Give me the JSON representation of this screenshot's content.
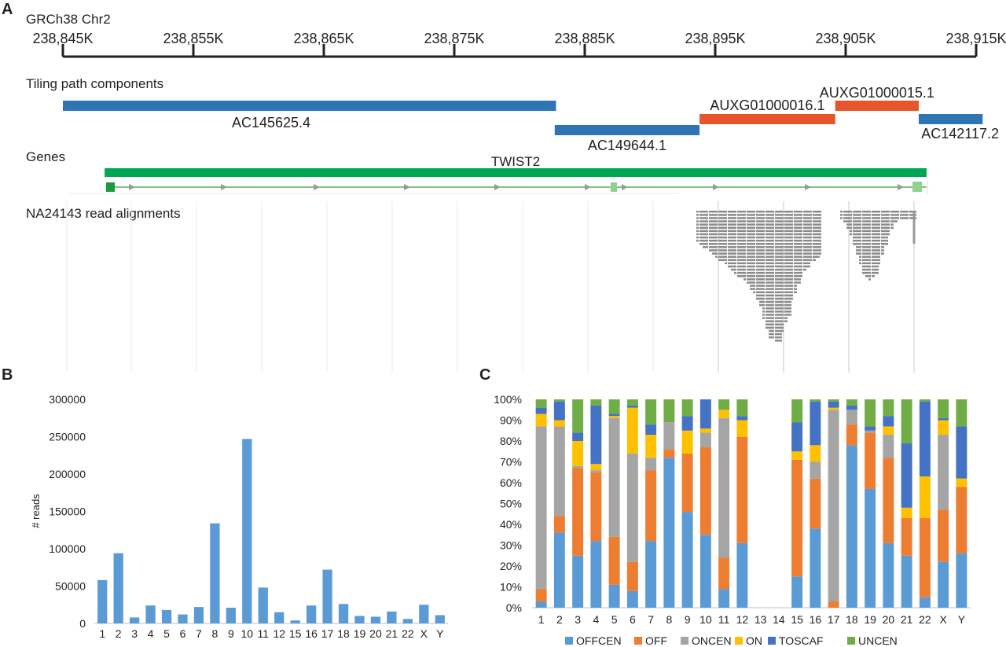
{
  "panel_labels": {
    "a": "A",
    "b": "B",
    "c": "C"
  },
  "panel_a": {
    "assembly_label": "GRCh38 Chr2",
    "ruler_ticks": [
      "238,845K",
      "238,855K",
      "238,865K",
      "238,875K",
      "238,885K",
      "238,895K",
      "238,905K",
      "238,915K"
    ],
    "ruler_range_kb": [
      238845,
      238915
    ],
    "tiling_title": "Tiling path components",
    "components": [
      {
        "name": "AC145625.4",
        "start_kb": 238845.0,
        "end_kb": 238882.8,
        "color": "#2f75b5"
      },
      {
        "name": "AC149644.1",
        "start_kb": 238882.7,
        "end_kb": 238893.8,
        "color": "#2f75b5"
      },
      {
        "name": "AUXG01000016.1",
        "start_kb": 238893.8,
        "end_kb": 238904.2,
        "color": "#e8542b"
      },
      {
        "name": "AUXG01000015.1",
        "start_kb": 238904.2,
        "end_kb": 238910.6,
        "color": "#e8542b"
      },
      {
        "name": "AC142117.2",
        "start_kb": 238910.6,
        "end_kb": 238915.5,
        "color": "#2f75b5"
      }
    ],
    "genes_title": "Genes",
    "gene": {
      "name": "TWIST2",
      "start_kb": 238848.2,
      "end_kb": 238911.2,
      "color": "#00a651"
    },
    "alignments_title": "NA24143 read alignments"
  },
  "chart_data": [
    {
      "type": "bar",
      "title": "",
      "xlabel": "",
      "ylabel": "# reads",
      "ylim": [
        0,
        300000
      ],
      "yticks": [
        "0",
        "50000",
        "100000",
        "150000",
        "200000",
        "250000",
        "300000"
      ],
      "categories": [
        "1",
        "2",
        "3",
        "4",
        "5",
        "6",
        "7",
        "8",
        "9",
        "10",
        "11",
        "12",
        "15",
        "16",
        "17",
        "18",
        "19",
        "20",
        "21",
        "22",
        "X",
        "Y"
      ],
      "values": [
        58000,
        94000,
        8000,
        24000,
        18000,
        12000,
        22000,
        134000,
        21000,
        247000,
        48000,
        15000,
        4000,
        24000,
        72000,
        26000,
        10000,
        9000,
        16000,
        6000,
        25000,
        11000
      ],
      "color": "#5b9bd5"
    },
    {
      "type": "bar",
      "stacked": true,
      "title": "",
      "ylim": [
        0,
        100
      ],
      "yticks": [
        "0%",
        "10%",
        "20%",
        "30%",
        "40%",
        "50%",
        "60%",
        "70%",
        "80%",
        "90%",
        "100%"
      ],
      "categories": [
        "1",
        "2",
        "3",
        "4",
        "5",
        "6",
        "7",
        "8",
        "9",
        "10",
        "11",
        "12",
        "13",
        "14",
        "15",
        "16",
        "17",
        "18",
        "19",
        "20",
        "21",
        "22",
        "X",
        "Y"
      ],
      "legend_position": "bottom",
      "series": [
        {
          "name": "OFFCEN",
          "color": "#5b9bd5",
          "values": [
            3,
            36,
            25,
            32,
            11,
            8,
            32,
            72,
            46,
            35,
            9,
            31,
            0,
            0,
            15,
            38,
            0,
            78,
            57,
            31,
            25,
            5,
            22,
            26
          ]
        },
        {
          "name": "OFF",
          "color": "#ed7d31",
          "values": [
            6,
            8,
            42,
            33,
            23,
            14,
            34,
            4,
            28,
            42,
            15,
            51,
            0,
            0,
            56,
            24,
            3,
            10,
            27,
            41,
            18,
            38,
            25,
            32
          ]
        },
        {
          "name": "ONCEN",
          "color": "#a5a5a5",
          "values": [
            78,
            43,
            1,
            1,
            57,
            52,
            6,
            13,
            0,
            7,
            67,
            0,
            0,
            0,
            0,
            8,
            92,
            7,
            1,
            11,
            0,
            0,
            36,
            0
          ]
        },
        {
          "name": "ON",
          "color": "#ffc000",
          "values": [
            6,
            3,
            12,
            3,
            1,
            22,
            11,
            0,
            11,
            2,
            4,
            8,
            0,
            0,
            4,
            8,
            1,
            0,
            0,
            4,
            5,
            20,
            7,
            4
          ]
        },
        {
          "name": "TOSCAF",
          "color": "#4472c4",
          "values": [
            3,
            9,
            4,
            28,
            1,
            1,
            5,
            0,
            7,
            14,
            0,
            2,
            0,
            0,
            14,
            21,
            3,
            2,
            2,
            5,
            31,
            36,
            1,
            25
          ]
        },
        {
          "name": "UNCEN",
          "color": "#70ad47",
          "values": [
            4,
            1,
            16,
            3,
            7,
            3,
            12,
            11,
            8,
            0,
            5,
            8,
            0,
            0,
            11,
            1,
            1,
            3,
            13,
            8,
            21,
            1,
            9,
            13
          ]
        }
      ]
    }
  ]
}
